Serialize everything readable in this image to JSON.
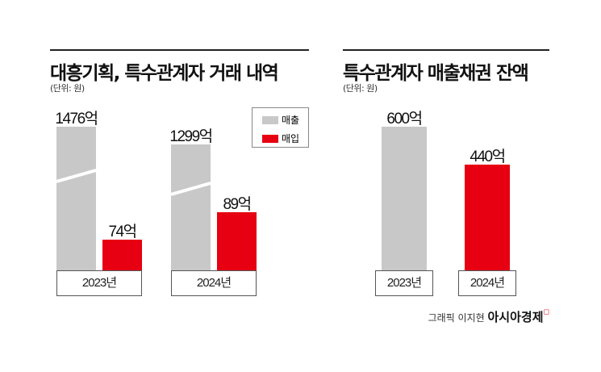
{
  "colors": {
    "sales": "#c8c8c8",
    "purchase": "#e60012",
    "text": "#111111"
  },
  "chart_data": [
    {
      "type": "bar",
      "title": "대흥기획, 특수관계자 거래 내역",
      "subtitle": "(단위: 원)",
      "categories": [
        "2023년",
        "2024년"
      ],
      "axis_break": true,
      "legend_position": "top-right",
      "series": [
        {
          "name": "매출",
          "color": "#c8c8c8",
          "values": [
            1476,
            1299
          ],
          "labels": [
            "1476억",
            "1299억"
          ]
        },
        {
          "name": "매입",
          "color": "#e60012",
          "values": [
            74,
            89
          ],
          "labels": [
            "74억",
            "89억"
          ]
        }
      ]
    },
    {
      "type": "bar",
      "title": "특수관계자 매출채권 잔액",
      "subtitle": "(단위: 원)",
      "categories": [
        "2023년",
        "2024년"
      ],
      "values": [
        600,
        440
      ],
      "labels": [
        "600억",
        "440억"
      ],
      "colors": [
        "#c8c8c8",
        "#e60012"
      ]
    }
  ],
  "credit": {
    "text": "그래픽 이지현",
    "brand": "아시아경제"
  }
}
